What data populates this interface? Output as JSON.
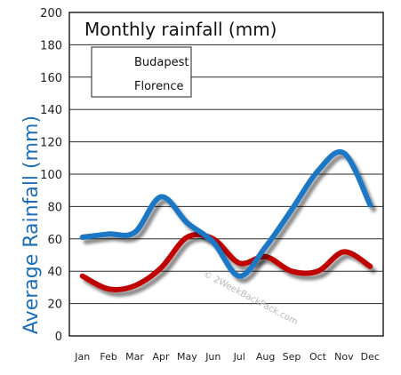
{
  "chart_data": {
    "type": "line",
    "title": "Monthly rainfall (mm)",
    "ylabel": "Average Rainfall (mm)",
    "xlabel": "",
    "categories": [
      "Jan",
      "Feb",
      "Mar",
      "Apr",
      "May",
      "Jun",
      "Jul",
      "Aug",
      "Sep",
      "Oct",
      "Nov",
      "Dec"
    ],
    "ylim": [
      0,
      200
    ],
    "yticks": [
      0,
      20,
      40,
      60,
      80,
      100,
      120,
      140,
      160,
      180,
      200
    ],
    "grid": true,
    "legend_position": "top-left",
    "series": [
      {
        "name": "Budapest",
        "color": "#c00000",
        "values": [
          37,
          29,
          31,
          42,
          61,
          60,
          45,
          49,
          40,
          40,
          52,
          43
        ]
      },
      {
        "name": "Florence",
        "color": "#1f77c4",
        "values": [
          61,
          63,
          64,
          86,
          70,
          58,
          37,
          55,
          78,
          102,
          113,
          81
        ]
      }
    ],
    "watermark": "© 2WeekBackPack.com"
  }
}
